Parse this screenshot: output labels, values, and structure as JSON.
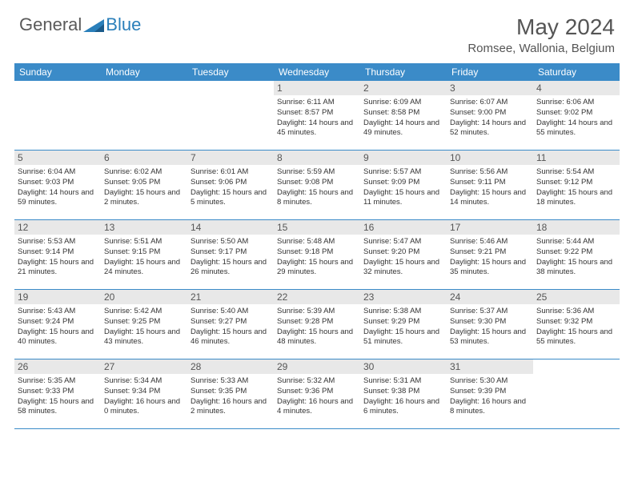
{
  "logo": {
    "text1": "General",
    "text2": "Blue"
  },
  "title": "May 2024",
  "location": "Romsee, Wallonia, Belgium",
  "header_bg": "#3b8bc8",
  "weekdays": [
    "Sunday",
    "Monday",
    "Tuesday",
    "Wednesday",
    "Thursday",
    "Friday",
    "Saturday"
  ],
  "weeks": [
    [
      null,
      null,
      null,
      {
        "n": "1",
        "sr": "6:11 AM",
        "ss": "8:57 PM",
        "dl": "14 hours and 45 minutes."
      },
      {
        "n": "2",
        "sr": "6:09 AM",
        "ss": "8:58 PM",
        "dl": "14 hours and 49 minutes."
      },
      {
        "n": "3",
        "sr": "6:07 AM",
        "ss": "9:00 PM",
        "dl": "14 hours and 52 minutes."
      },
      {
        "n": "4",
        "sr": "6:06 AM",
        "ss": "9:02 PM",
        "dl": "14 hours and 55 minutes."
      }
    ],
    [
      {
        "n": "5",
        "sr": "6:04 AM",
        "ss": "9:03 PM",
        "dl": "14 hours and 59 minutes."
      },
      {
        "n": "6",
        "sr": "6:02 AM",
        "ss": "9:05 PM",
        "dl": "15 hours and 2 minutes."
      },
      {
        "n": "7",
        "sr": "6:01 AM",
        "ss": "9:06 PM",
        "dl": "15 hours and 5 minutes."
      },
      {
        "n": "8",
        "sr": "5:59 AM",
        "ss": "9:08 PM",
        "dl": "15 hours and 8 minutes."
      },
      {
        "n": "9",
        "sr": "5:57 AM",
        "ss": "9:09 PM",
        "dl": "15 hours and 11 minutes."
      },
      {
        "n": "10",
        "sr": "5:56 AM",
        "ss": "9:11 PM",
        "dl": "15 hours and 14 minutes."
      },
      {
        "n": "11",
        "sr": "5:54 AM",
        "ss": "9:12 PM",
        "dl": "15 hours and 18 minutes."
      }
    ],
    [
      {
        "n": "12",
        "sr": "5:53 AM",
        "ss": "9:14 PM",
        "dl": "15 hours and 21 minutes."
      },
      {
        "n": "13",
        "sr": "5:51 AM",
        "ss": "9:15 PM",
        "dl": "15 hours and 24 minutes."
      },
      {
        "n": "14",
        "sr": "5:50 AM",
        "ss": "9:17 PM",
        "dl": "15 hours and 26 minutes."
      },
      {
        "n": "15",
        "sr": "5:48 AM",
        "ss": "9:18 PM",
        "dl": "15 hours and 29 minutes."
      },
      {
        "n": "16",
        "sr": "5:47 AM",
        "ss": "9:20 PM",
        "dl": "15 hours and 32 minutes."
      },
      {
        "n": "17",
        "sr": "5:46 AM",
        "ss": "9:21 PM",
        "dl": "15 hours and 35 minutes."
      },
      {
        "n": "18",
        "sr": "5:44 AM",
        "ss": "9:22 PM",
        "dl": "15 hours and 38 minutes."
      }
    ],
    [
      {
        "n": "19",
        "sr": "5:43 AM",
        "ss": "9:24 PM",
        "dl": "15 hours and 40 minutes."
      },
      {
        "n": "20",
        "sr": "5:42 AM",
        "ss": "9:25 PM",
        "dl": "15 hours and 43 minutes."
      },
      {
        "n": "21",
        "sr": "5:40 AM",
        "ss": "9:27 PM",
        "dl": "15 hours and 46 minutes."
      },
      {
        "n": "22",
        "sr": "5:39 AM",
        "ss": "9:28 PM",
        "dl": "15 hours and 48 minutes."
      },
      {
        "n": "23",
        "sr": "5:38 AM",
        "ss": "9:29 PM",
        "dl": "15 hours and 51 minutes."
      },
      {
        "n": "24",
        "sr": "5:37 AM",
        "ss": "9:30 PM",
        "dl": "15 hours and 53 minutes."
      },
      {
        "n": "25",
        "sr": "5:36 AM",
        "ss": "9:32 PM",
        "dl": "15 hours and 55 minutes."
      }
    ],
    [
      {
        "n": "26",
        "sr": "5:35 AM",
        "ss": "9:33 PM",
        "dl": "15 hours and 58 minutes."
      },
      {
        "n": "27",
        "sr": "5:34 AM",
        "ss": "9:34 PM",
        "dl": "16 hours and 0 minutes."
      },
      {
        "n": "28",
        "sr": "5:33 AM",
        "ss": "9:35 PM",
        "dl": "16 hours and 2 minutes."
      },
      {
        "n": "29",
        "sr": "5:32 AM",
        "ss": "9:36 PM",
        "dl": "16 hours and 4 minutes."
      },
      {
        "n": "30",
        "sr": "5:31 AM",
        "ss": "9:38 PM",
        "dl": "16 hours and 6 minutes."
      },
      {
        "n": "31",
        "sr": "5:30 AM",
        "ss": "9:39 PM",
        "dl": "16 hours and 8 minutes."
      },
      null
    ]
  ],
  "labels": {
    "sunrise": "Sunrise: ",
    "sunset": "Sunset: ",
    "daylight": "Daylight: "
  }
}
